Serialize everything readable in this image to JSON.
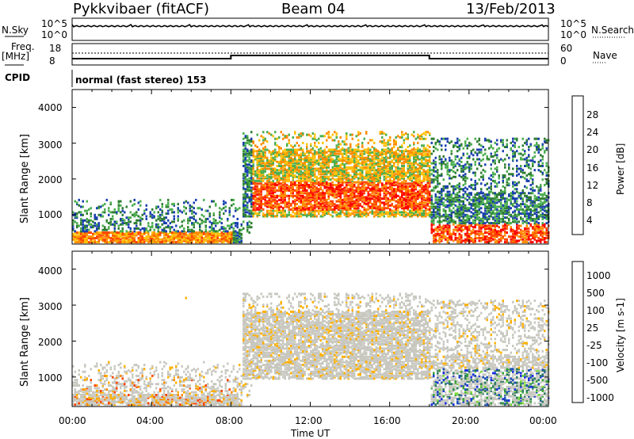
{
  "header": {
    "station": "Pykkvibaer (fitACF)",
    "beam": "Beam 04",
    "date": "13/Feb/2013"
  },
  "strip_labels": {
    "noise_sky": "N.Sky",
    "noise_search": "N.Search",
    "noise_ticks": [
      "10^5",
      "10^0"
    ],
    "freq_top": "Freq.",
    "freq_unit": "[MHz]",
    "freq_ticks": [
      "18",
      "8"
    ],
    "nave_ticks": [
      "60",
      "0"
    ],
    "nave": "Nave",
    "cpid": "CPID",
    "cpid_value": "normal (fast stereo) 153"
  },
  "colors": {
    "power": [
      "#0000ff",
      "#1a3fb0",
      "#2e7d32",
      "#4caf50",
      "#ffc107",
      "#ff8c00",
      "#ff4500",
      "#ff0000"
    ],
    "velocity": [
      "#ff0000",
      "#ff4500",
      "#ff8c00",
      "#ffb000",
      "#c8c8c0",
      "#c8c8c0",
      "#7ddc3a",
      "#3aa33a",
      "#2e7d60",
      "#1f4fb5",
      "#1a2fe0"
    ]
  },
  "chart_data": [
    {
      "type": "heatmap",
      "name": "power",
      "ylabel": "Slant Range [km]",
      "yticks": [
        "4000",
        "3000",
        "2000",
        "1000"
      ],
      "ylim": [
        180,
        4500
      ],
      "xlim": [
        0,
        24
      ],
      "colorbar_label": "Power [dB]",
      "colorbar_ticks": [
        "28",
        "24",
        "20",
        "16",
        "12",
        "8",
        "4"
      ]
    },
    {
      "type": "heatmap",
      "name": "velocity",
      "ylabel": "Slant Range [km]",
      "yticks": [
        "4000",
        "3000",
        "2000",
        "1000"
      ],
      "ylim": [
        180,
        4500
      ],
      "xlim": [
        0,
        24
      ],
      "colorbar_label": "Velocity [m s-1]",
      "colorbar_ticks": [
        "1000",
        "500",
        "100",
        "25",
        "-25",
        "-100",
        "-500",
        "-1000"
      ]
    }
  ],
  "xaxis": {
    "ticks": [
      "00:00",
      "04:00",
      "08:00",
      "12:00",
      "16:00",
      "20:00",
      "00:00"
    ],
    "label": "Time UT"
  }
}
